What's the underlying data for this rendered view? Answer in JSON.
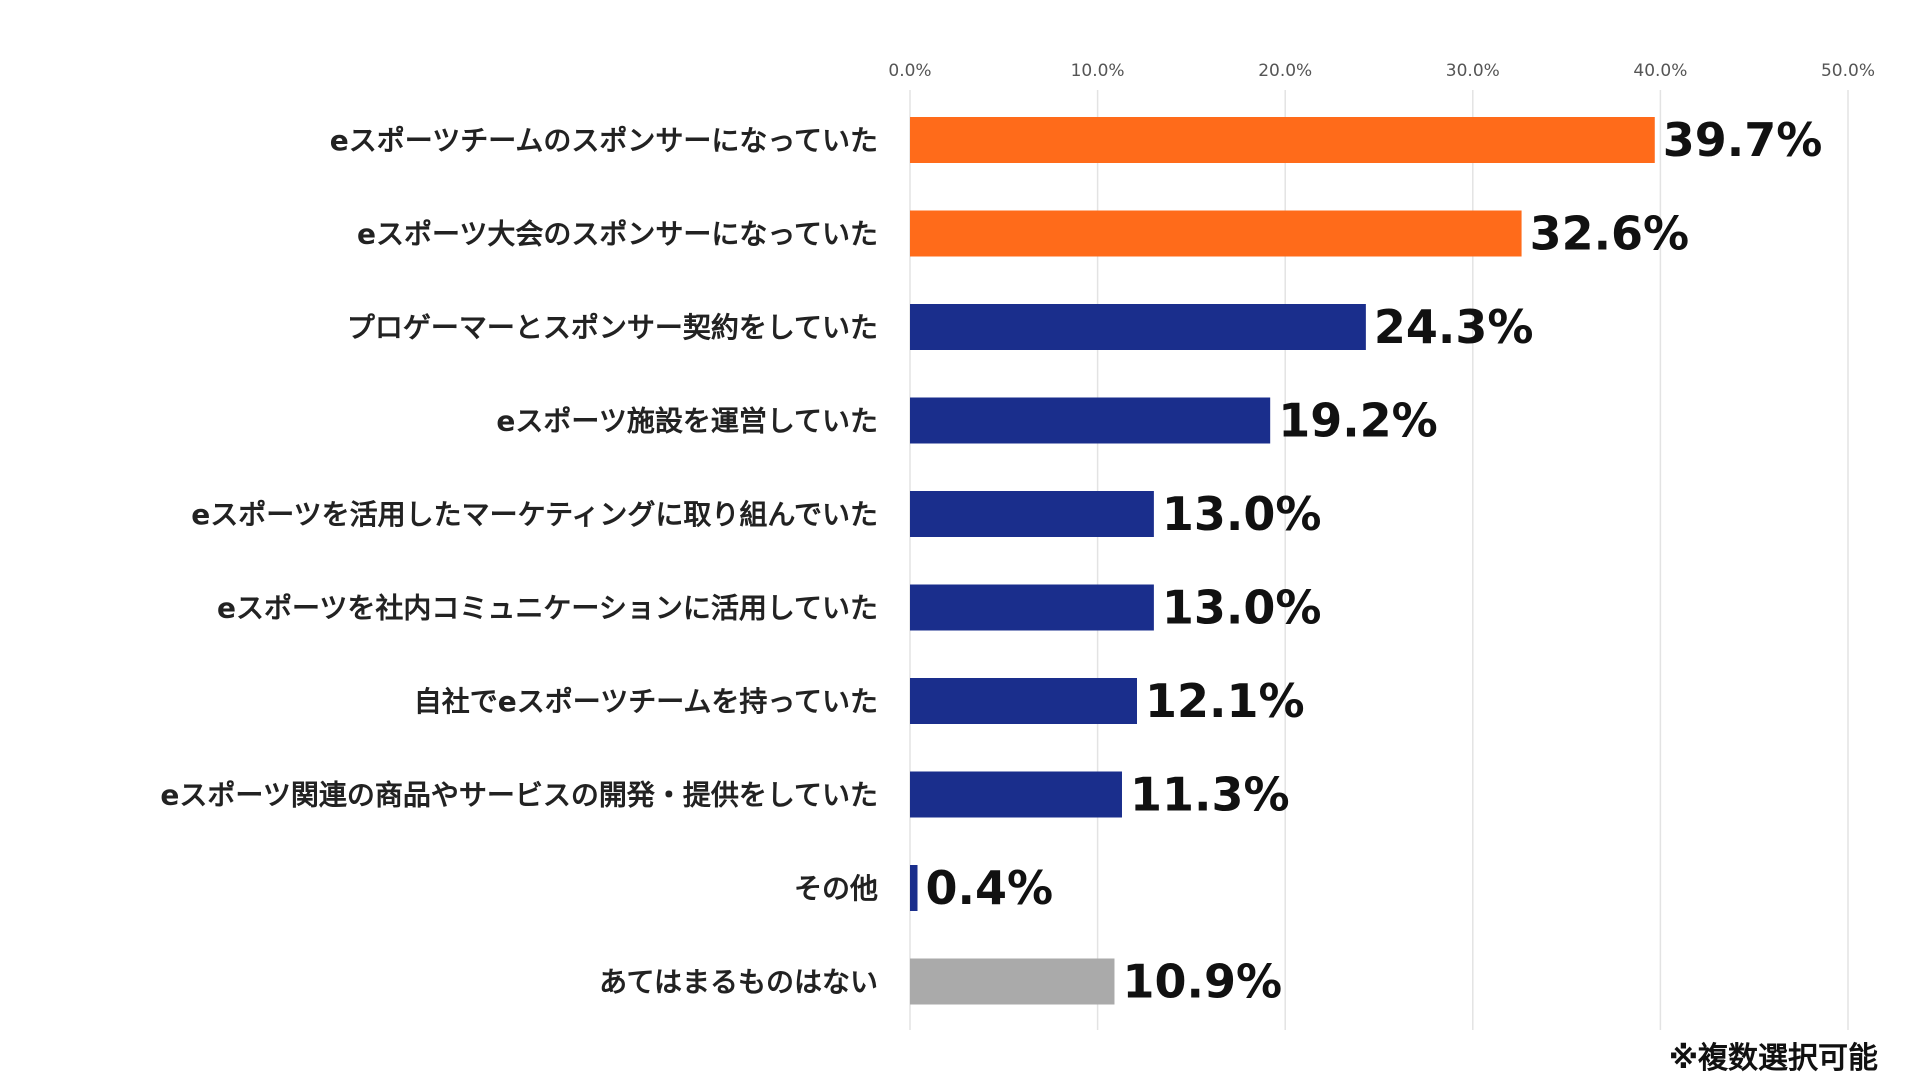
{
  "chart_data": {
    "type": "bar",
    "orientation": "horizontal",
    "categories": [
      "eスポーツチームのスポンサーになっていた",
      "eスポーツ大会のスポンサーになっていた",
      "プロゲーマーとスポンサー契約をしていた",
      "eスポーツ施設を運営していた",
      "eスポーツを活用したマーケティングに取り組んでいた",
      "eスポーツを社内コミュニケーションに活用していた",
      "自社でeスポーツチームを持っていた",
      "eスポーツ関連の商品やサービスの開発・提供をしていた",
      "その他",
      "あてはまるものはない"
    ],
    "values": [
      39.7,
      32.6,
      24.3,
      19.2,
      13.0,
      13.0,
      12.1,
      11.3,
      0.4,
      10.9
    ],
    "value_labels": [
      "39.7%",
      "32.6%",
      "24.3%",
      "19.2%",
      "13.0%",
      "13.0%",
      "12.1%",
      "11.3%",
      "0.4%",
      "10.9%"
    ],
    "bar_colors": [
      "#FF6B1A",
      "#FF6B1A",
      "#1A2E8C",
      "#1A2E8C",
      "#1A2E8C",
      "#1A2E8C",
      "#1A2E8C",
      "#1A2E8C",
      "#1A2E8C",
      "#AAAAAA"
    ],
    "xlim": [
      0,
      50
    ],
    "xticks": [
      0,
      10,
      20,
      30,
      40,
      50
    ],
    "xtick_labels": [
      "0.0%",
      "10.0%",
      "20.0%",
      "30.0%",
      "40.0%",
      "50.0%"
    ],
    "axis_position": "top",
    "grid": true,
    "note": "※複数選択可能"
  }
}
